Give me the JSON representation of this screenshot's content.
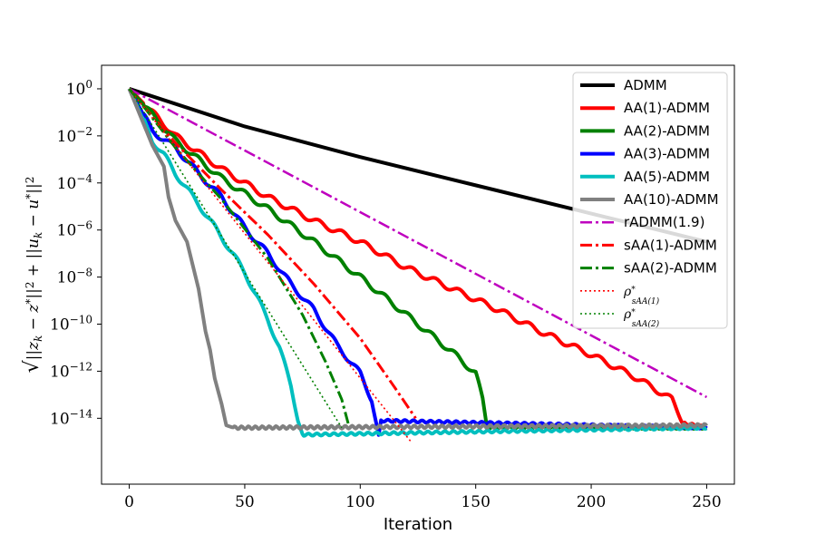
{
  "chart_data": {
    "type": "line",
    "title": "",
    "xlabel": "Iteration",
    "ylabel": "√(||z_k − z*||² + ||u_k − u*||²)",
    "ylabel_parts": {
      "sqrt": "√",
      "z_term": "||z",
      "z_sub": "k",
      "minus_z": " − z",
      "z_star": "*",
      "z_norm": "||",
      "two_a": "2",
      "plus": " + ||u",
      "u_sub": "k",
      "minus_u": " − u",
      "u_star": "*",
      "u_norm": "||",
      "two_b": "2"
    },
    "yscale": "log",
    "xlim": [
      -12,
      262
    ],
    "ylim_log10": [
      -16.8,
      1.0
    ],
    "xticks": [
      0,
      50,
      100,
      150,
      200,
      250
    ],
    "xtick_labels": [
      "0",
      "50",
      "100",
      "150",
      "200",
      "250"
    ],
    "yticks_log10": [
      0,
      -2,
      -4,
      -6,
      -8,
      -10,
      -12,
      -14
    ],
    "ytick_labels": [
      {
        "base": "10",
        "exp": "0"
      },
      {
        "base": "10",
        "exp": "−2"
      },
      {
        "base": "10",
        "exp": "−4"
      },
      {
        "base": "10",
        "exp": "−6"
      },
      {
        "base": "10",
        "exp": "−8"
      },
      {
        "base": "10",
        "exp": "−10"
      },
      {
        "base": "10",
        "exp": "−12"
      },
      {
        "base": "10",
        "exp": "−14"
      }
    ],
    "grid": false,
    "legend_position": "top-right",
    "series": [
      {
        "name": "ADMM",
        "color": "#000000",
        "style": "solid",
        "width": 4,
        "points": [
          [
            0,
            0
          ],
          [
            50,
            -1.6
          ],
          [
            100,
            -2.9
          ],
          [
            150,
            -4.1
          ],
          [
            200,
            -5.3
          ],
          [
            250,
            -6.5
          ]
        ]
      },
      {
        "name": "AA(1)-ADMM",
        "color": "#ff0000",
        "style": "solid",
        "width": 4,
        "points": [
          [
            0,
            0
          ],
          [
            10,
            -1.0
          ],
          [
            20,
            -2.0
          ],
          [
            40,
            -3.4
          ],
          [
            60,
            -4.6
          ],
          [
            80,
            -5.6
          ],
          [
            100,
            -6.5
          ],
          [
            120,
            -7.6
          ],
          [
            140,
            -8.5
          ],
          [
            160,
            -9.4
          ],
          [
            180,
            -10.4
          ],
          [
            200,
            -11.3
          ],
          [
            220,
            -12.3
          ],
          [
            235,
            -13.2
          ],
          [
            240,
            -14.2
          ],
          [
            250,
            -14.4
          ]
        ],
        "wavy": true
      },
      {
        "name": "AA(2)-ADMM",
        "color": "#008000",
        "style": "solid",
        "width": 4,
        "points": [
          [
            0,
            0
          ],
          [
            10,
            -1.1
          ],
          [
            20,
            -2.2
          ],
          [
            40,
            -3.8
          ],
          [
            60,
            -5.1
          ],
          [
            80,
            -6.5
          ],
          [
            100,
            -8.0
          ],
          [
            120,
            -9.6
          ],
          [
            140,
            -11.2
          ],
          [
            150,
            -12.1
          ],
          [
            153,
            -13.2
          ],
          [
            155,
            -14.4
          ],
          [
            250,
            -14.4
          ]
        ],
        "wavy": true
      },
      {
        "name": "AA(3)-ADMM",
        "color": "#0000ff",
        "style": "solid",
        "width": 4,
        "points": [
          [
            0,
            0
          ],
          [
            10,
            -1.8
          ],
          [
            20,
            -2.5
          ],
          [
            30,
            -3.6
          ],
          [
            40,
            -4.6
          ],
          [
            50,
            -5.9
          ],
          [
            60,
            -7.0
          ],
          [
            70,
            -8.3
          ],
          [
            80,
            -9.4
          ],
          [
            90,
            -10.9
          ],
          [
            100,
            -12.1
          ],
          [
            105,
            -13.2
          ],
          [
            108,
            -14.8
          ],
          [
            109,
            -14.1
          ],
          [
            250,
            -14.4
          ]
        ],
        "wavy": true
      },
      {
        "name": "AA(5)-ADMM",
        "color": "#00bfbf",
        "style": "solid",
        "width": 4,
        "points": [
          [
            0,
            0
          ],
          [
            10,
            -2.2
          ],
          [
            15,
            -2.8
          ],
          [
            20,
            -3.6
          ],
          [
            30,
            -4.9
          ],
          [
            40,
            -6.3
          ],
          [
            50,
            -7.8
          ],
          [
            60,
            -9.8
          ],
          [
            65,
            -11.0
          ],
          [
            70,
            -12.6
          ],
          [
            73,
            -14.0
          ],
          [
            75,
            -14.7
          ],
          [
            250,
            -14.4
          ]
        ],
        "wavy": true
      },
      {
        "name": "AA(10)-ADMM",
        "color": "#808080",
        "style": "solid",
        "width": 4,
        "points": [
          [
            0,
            0
          ],
          [
            10,
            -2.4
          ],
          [
            15,
            -3.3
          ],
          [
            17,
            -4.6
          ],
          [
            20,
            -5.6
          ],
          [
            25,
            -6.5
          ],
          [
            30,
            -8.5
          ],
          [
            33,
            -10.3
          ],
          [
            35,
            -11.1
          ],
          [
            37,
            -12.3
          ],
          [
            40,
            -13.4
          ],
          [
            42,
            -14.3
          ],
          [
            45,
            -14.4
          ],
          [
            50,
            -14.4
          ],
          [
            250,
            -14.3
          ]
        ]
      },
      {
        "name": "rADMM(1.9)",
        "color": "#bf00bf",
        "style": "dashdot",
        "width": 2.5,
        "points": [
          [
            0,
            0
          ],
          [
            250,
            -13.1
          ]
        ]
      },
      {
        "name": "sAA(1)-ADMM",
        "color": "#ff0000",
        "style": "dashdot",
        "width": 3,
        "points": [
          [
            0,
            0
          ],
          [
            5,
            -0.6
          ],
          [
            20,
            -2.3
          ],
          [
            40,
            -4.3
          ],
          [
            60,
            -6.2
          ],
          [
            80,
            -8.3
          ],
          [
            100,
            -10.6
          ],
          [
            115,
            -12.7
          ],
          [
            124,
            -14.0
          ]
        ]
      },
      {
        "name": "sAA(2)-ADMM",
        "color": "#008000",
        "style": "dashdot",
        "width": 3,
        "points": [
          [
            0,
            0
          ],
          [
            5,
            -0.6
          ],
          [
            20,
            -2.5
          ],
          [
            40,
            -4.7
          ],
          [
            60,
            -7.2
          ],
          [
            75,
            -9.6
          ],
          [
            85,
            -11.6
          ],
          [
            92,
            -13.2
          ],
          [
            95,
            -14.3
          ]
        ]
      },
      {
        "name": "ρ*_sAA(1)",
        "color": "#ff0000",
        "style": "dotted",
        "width": 1.6,
        "points": [
          [
            0,
            0
          ],
          [
            122,
            -15.0
          ]
        ]
      },
      {
        "name": "ρ*_sAA(2)",
        "color": "#008000",
        "style": "dotted",
        "width": 1.6,
        "points": [
          [
            0,
            0
          ],
          [
            92,
            -14.4
          ]
        ]
      }
    ],
    "legend_entries": [
      {
        "label": "ADMM"
      },
      {
        "label": "AA(1)-ADMM"
      },
      {
        "label": "AA(2)-ADMM"
      },
      {
        "label": "AA(3)-ADMM"
      },
      {
        "label": "AA(5)-ADMM"
      },
      {
        "label": "AA(10)-ADMM"
      },
      {
        "label": "rADMM(1.9)"
      },
      {
        "label": "sAA(1)-ADMM"
      },
      {
        "label": "sAA(2)-ADMM"
      },
      {
        "label": "ρ",
        "sup": "*",
        "sub": "sAA(1)"
      },
      {
        "label": "ρ",
        "sup": "*",
        "sub": "sAA(2)"
      }
    ]
  }
}
